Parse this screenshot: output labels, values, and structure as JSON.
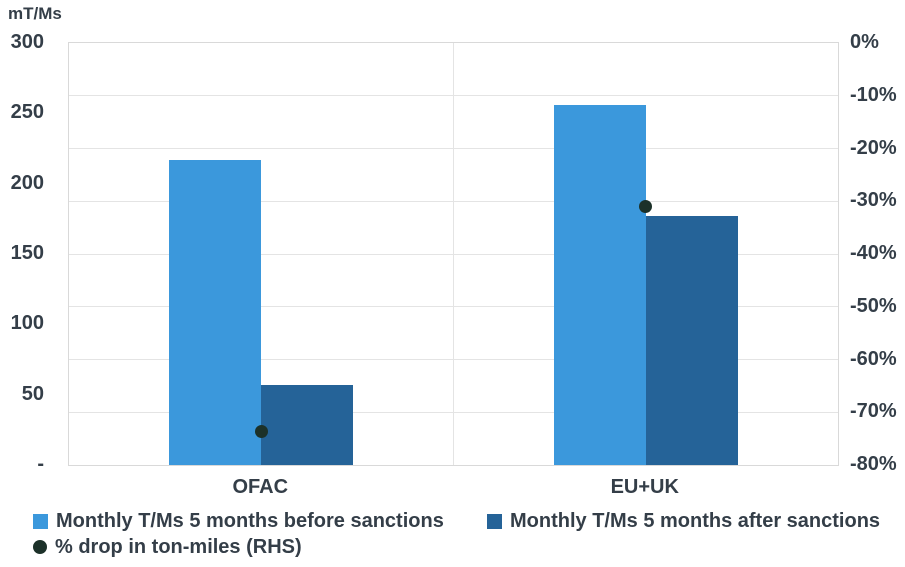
{
  "chart_data": {
    "type": "bar",
    "categories": [
      "OFAC",
      "EU+UK"
    ],
    "left_axis": {
      "title": "mT/Ms",
      "min": 0,
      "max": 300,
      "tick_step": 50,
      "tick_labels": [
        "300",
        "250",
        "200",
        "150",
        "100",
        "50",
        "-"
      ]
    },
    "right_axis": {
      "min": -80,
      "max": 0,
      "tick_step": 10,
      "tick_labels": [
        "0%",
        "-10%",
        "-20%",
        "-30%",
        "-40%",
        "-50%",
        "-60%",
        "-70%",
        "-80%"
      ]
    },
    "series": [
      {
        "name": "Monthly T/Ms 5 months before sanctions",
        "type": "bar",
        "axis": "left",
        "color": "#3b98dc",
        "values": [
          217,
          256
        ]
      },
      {
        "name": "Monthly T/Ms 5 months after sanctions",
        "type": "bar",
        "axis": "left",
        "color": "#256398",
        "values": [
          57,
          177
        ]
      },
      {
        "name": "% drop in ton-miles (RHS)",
        "type": "scatter",
        "axis": "right",
        "color": "#1c3129",
        "values": [
          -73.7,
          -30.9
        ]
      }
    ],
    "grid": {
      "horizontal": true,
      "vertical_category_divider": true
    },
    "legend_position": "bottom"
  },
  "colors": {
    "text": "#343e48",
    "gridline": "#e4e4e4",
    "plot_border": "#d9d9d9",
    "background": "#ffffff"
  }
}
